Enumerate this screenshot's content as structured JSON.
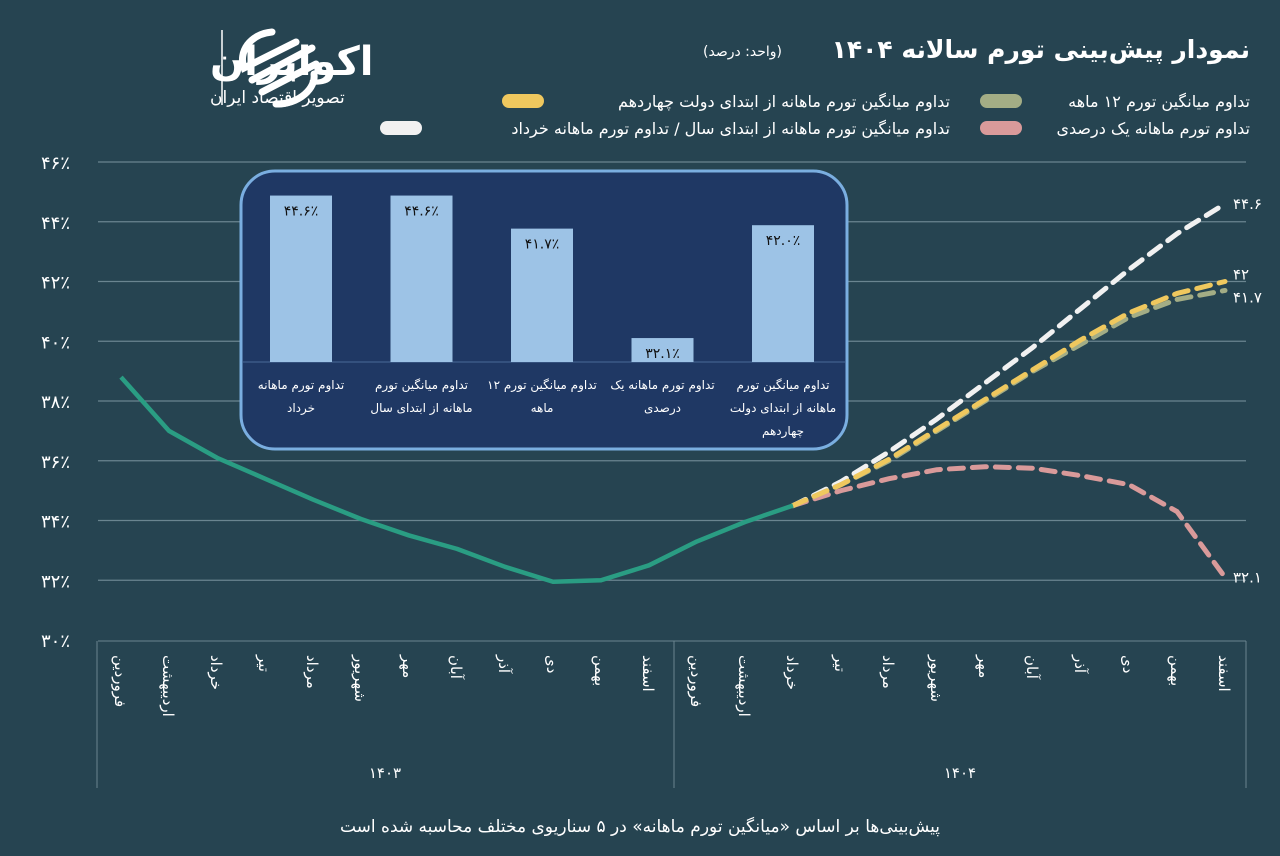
{
  "logo": {
    "name": "اکوایران",
    "tagline": "تصویر اقتصاد ایران"
  },
  "colors": {
    "background": "#264451",
    "history": "#2a9d83",
    "white": "#f1f1f1",
    "yellow": "#efc85e",
    "olive": "#a3ad85",
    "pink": "#d99a9a",
    "inset_bg": "#1f3864",
    "inset_border": "#7aaee0",
    "bar": "#9dc3e6",
    "grid": "#6a8590"
  },
  "chart_data": [
    {
      "type": "line",
      "title": "نمودار پیش‌بینی تورم سالانه ۱۴۰۴",
      "unit": "(واحد: درصد)",
      "ylim": [
        30,
        46
      ],
      "yticks": [
        "۳۰٪",
        "۳۲٪",
        "۳۴٪",
        "۳۶٪",
        "۳۸٪",
        "۴۰٪",
        "۴۲٪",
        "۴۴٪",
        "۴۶٪"
      ],
      "ytick_values": [
        30,
        32,
        34,
        36,
        38,
        40,
        42,
        44,
        46
      ],
      "grid": true,
      "years": [
        "۱۴۰۳",
        "۱۴۰۴"
      ],
      "months": [
        "فروردین",
        "اردیبهشت",
        "خرداد",
        "تیر",
        "مرداد",
        "شهریور",
        "مهر",
        "آبان",
        "آذر",
        "دی",
        "بهمن",
        "اسفند"
      ],
      "history": {
        "start_index": 0,
        "values": [
          38.8,
          37.0,
          36.1,
          35.4,
          34.7,
          34.05,
          33.5,
          33.05,
          32.45,
          31.95,
          32.0,
          32.5,
          33.3,
          33.95,
          34.5
        ]
      },
      "series": [
        {
          "name": "تداوم میانگین تورم ۱۲ ماهه",
          "color_key": "olive",
          "start_index": 14,
          "values": [
            34.5,
            35.2,
            36.0,
            37.0,
            38.0,
            39.0,
            39.9,
            40.8,
            41.4,
            41.7
          ],
          "end_label": "۴۱.۷"
        },
        {
          "name": "تداوم میانگین تورم ماهانه از ابتدای دولت چهاردهم",
          "color_key": "yellow",
          "start_index": 14,
          "values": [
            34.5,
            35.2,
            36.05,
            37.05,
            38.05,
            39.05,
            40.05,
            40.95,
            41.6,
            42.0
          ],
          "end_label": "۴۲"
        },
        {
          "name": "تداوم تورم ماهانه یک درصدی",
          "color_key": "pink",
          "start_index": 14,
          "values": [
            34.5,
            35.0,
            35.4,
            35.7,
            35.8,
            35.75,
            35.5,
            35.2,
            34.3,
            32.1
          ],
          "end_label": "۳۲.۱"
        },
        {
          "name": "تداوم میانگین تورم ماهانه از ابتدای سال / تداوم تورم ماهانه خرداد",
          "color_key": "white",
          "start_index": 14,
          "values": [
            34.5,
            35.3,
            36.3,
            37.4,
            38.6,
            39.8,
            41.1,
            42.4,
            43.6,
            44.6
          ],
          "end_label": "۴۴.۶"
        }
      ],
      "legend": [
        {
          "label": "تداوم میانگین تورم ۱۲ ماهه",
          "color_key": "olive"
        },
        {
          "label": "تداوم میانگین تورم ماهانه از ابتدای دولت چهاردهم",
          "color_key": "yellow"
        },
        {
          "label": "تداوم تورم ماهانه یک درصدی",
          "color_key": "pink"
        },
        {
          "label": "تداوم میانگین تورم ماهانه از ابتدای سال / تداوم تورم ماهانه خرداد",
          "color_key": "white"
        }
      ],
      "legend_position": "top-right",
      "footnote": "پیش‌بینی‌ها بر اساس «میانگین تورم ماهانه» در ۵ سناریوی مختلف محاسبه شده است"
    },
    {
      "type": "bar",
      "categories": [
        [
          "تداوم تورم ماهانه",
          "خرداد"
        ],
        [
          "تداوم میانگین تورم",
          "ماهانه از ابتدای سال"
        ],
        [
          "تداوم میانگین تورم ۱۲",
          "ماهه"
        ],
        [
          "تداوم تورم ماهانه یک",
          "درصدی"
        ],
        [
          "تداوم میانگین تورم",
          "ماهانه از ابتدای  دولت",
          "چهاردهم"
        ]
      ],
      "values": [
        44.6,
        44.6,
        41.7,
        32.1,
        42.0
      ],
      "data_labels": [
        "۴۴.۶٪",
        "۴۴.۶٪",
        "۴۱.۷٪",
        "۳۲.۱٪",
        "۴۲.۰٪"
      ],
      "ylim": [
        30,
        45
      ]
    }
  ]
}
